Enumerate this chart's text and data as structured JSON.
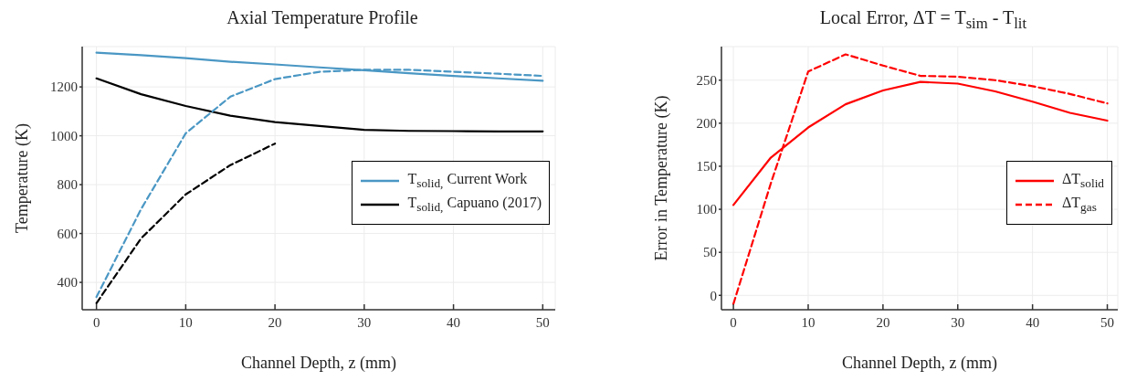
{
  "chart_data": [
    {
      "type": "line",
      "title": "Axial Temperature Profile",
      "xlabel": "Channel Depth, z (mm)",
      "ylabel": "Temperature (K)",
      "x": [
        0,
        5,
        10,
        15,
        20,
        25,
        30,
        35,
        40,
        45,
        50
      ],
      "series": [
        {
          "name": "T$_{solid,}$ Current Work",
          "color": "#4a97c4",
          "line_style": "solid",
          "values": [
            1340,
            1330,
            1318,
            1303,
            1292,
            1280,
            1268,
            1256,
            1245,
            1235,
            1225
          ]
        },
        {
          "name": "T$_{solid,}$ Capuano (2017)",
          "color": "#000000",
          "line_style": "solid",
          "values": [
            1235,
            1170,
            1122,
            1082,
            1056,
            1040,
            1024,
            1020,
            1019,
            1018,
            1018
          ]
        },
        {
          "color": "#4a97c4",
          "line_style": "dashed",
          "values": [
            340,
            700,
            1010,
            1160,
            1232,
            1262,
            1270,
            1270,
            1262,
            1254,
            1245
          ]
        },
        {
          "color": "#000000",
          "line_style": "dashed",
          "values": [
            315,
            580,
            760,
            880,
            968,
            null,
            null,
            null,
            null,
            null,
            null
          ]
        }
      ],
      "xlim": [
        -1.6,
        51.4
      ],
      "xticks": [
        0,
        10,
        20,
        30,
        40,
        50
      ],
      "ylim": [
        288,
        1365
      ],
      "yticks": [
        400,
        600,
        800,
        1000,
        1200
      ],
      "grid": true,
      "legend": "right"
    },
    {
      "type": "line",
      "title": "Local Error, ΔT = T$_{sim}$ - T$_{lit}$",
      "xlabel": "Channel Depth, z (mm)",
      "ylabel": "Error in Temperature (K)",
      "x": [
        0,
        5,
        10,
        15,
        20,
        25,
        30,
        35,
        40,
        45,
        50
      ],
      "series": [
        {
          "name": "ΔT$_{solid}$",
          "color": "#ff0000",
          "line_style": "solid",
          "values": [
            105,
            160,
            195,
            222,
            238,
            248,
            246,
            237,
            225,
            212,
            203
          ]
        },
        {
          "name": "ΔT$_{gas}$",
          "color": "#ff0000",
          "line_style": "dashed",
          "values": [
            -10,
            130,
            260,
            280,
            267,
            255,
            254,
            250,
            243,
            234,
            223
          ]
        }
      ],
      "xlim": [
        -1.6,
        51.4
      ],
      "xticks": [
        0,
        10,
        20,
        30,
        40,
        50
      ],
      "ylim": [
        -16.7,
        289
      ],
      "yticks": [
        0,
        50,
        100,
        150,
        200,
        250
      ],
      "grid": true,
      "legend": "right"
    }
  ]
}
